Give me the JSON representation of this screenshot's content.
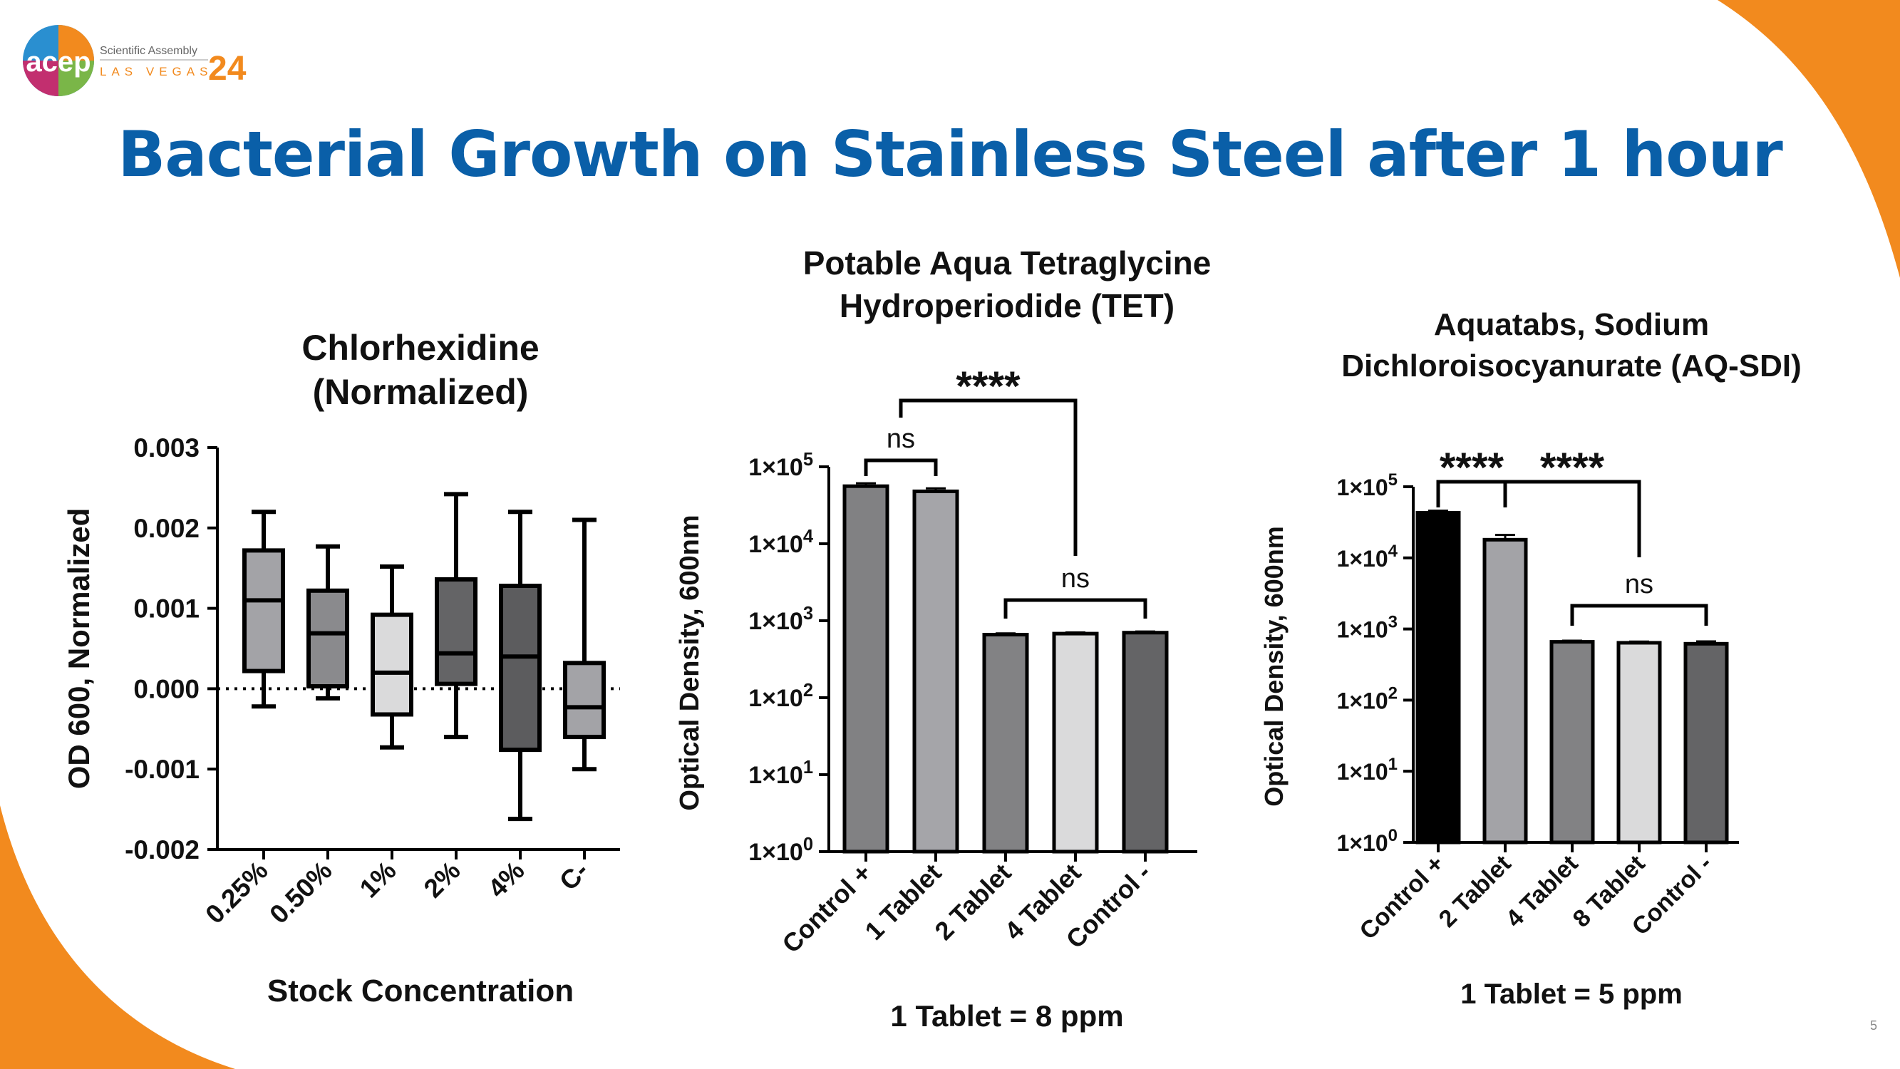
{
  "header": {
    "logo_mark": "acep",
    "logo_line1": "Scientific Assembly",
    "logo_line2": "LAS VEGAS",
    "logo_year": "24",
    "title": "Bacterial Growth on Stainless Steel after 1 hour"
  },
  "colors": {
    "title_blue": "#0a5fa8",
    "accent_orange": "#f28a1e"
  },
  "slide_number": "5",
  "chart_data": [
    {
      "type": "box",
      "title_lines": [
        "Chlorhexidine",
        "(Normalized)"
      ],
      "xlabel": "Stock Concentration",
      "ylabel": "OD 600, Normalized",
      "ylim": [
        -0.002,
        0.003
      ],
      "yticks": [
        0.003,
        0.002,
        0.001,
        0.0,
        -0.001,
        -0.002
      ],
      "ytick_labels": [
        "0.003",
        "0.002",
        "0.001",
        "0.000",
        "-0.001",
        "-0.002"
      ],
      "reference_line": 0,
      "categories": [
        "0.25%",
        "0.50%",
        "1%",
        "2%",
        "4%",
        "C-"
      ],
      "boxes": [
        {
          "min": -0.00022,
          "q1": 0.00022,
          "median": 0.0011,
          "q3": 0.00172,
          "max": 0.0022,
          "color": "#a3a3a7"
        },
        {
          "min": -0.00012,
          "q1": 3e-05,
          "median": 0.00069,
          "q3": 0.00122,
          "max": 0.00177,
          "color": "#8a8a8d"
        },
        {
          "min": -0.00073,
          "q1": -0.00032,
          "median": 0.0002,
          "q3": 0.00092,
          "max": 0.00152,
          "color": "#dadadb"
        },
        {
          "min": -0.0006,
          "q1": 6e-05,
          "median": 0.00044,
          "q3": 0.00136,
          "max": 0.00242,
          "color": "#646466"
        },
        {
          "min": -0.00162,
          "q1": -0.00076,
          "median": 0.0004,
          "q3": 0.00128,
          "max": 0.0022,
          "color": "#5c5c5e"
        },
        {
          "min": -0.001,
          "q1": -0.0006,
          "median": -0.00023,
          "q3": 0.00032,
          "max": 0.0021,
          "color": "#a3a3a7"
        }
      ]
    },
    {
      "type": "bar",
      "title_lines": [
        "Potable Aqua Tetraglycine",
        "Hydroperiodide (TET)"
      ],
      "xlabel": "1 Tablet = 8 ppm",
      "ylabel": "Optical Density, 600nm",
      "yscale": "log",
      "ylim": [
        1,
        100000
      ],
      "ytick_labels": [
        {
          "base": "1×10",
          "exp": "0"
        },
        {
          "base": "1×10",
          "exp": "1"
        },
        {
          "base": "1×10",
          "exp": "2"
        },
        {
          "base": "1×10",
          "exp": "3"
        },
        {
          "base": "1×10",
          "exp": "4"
        },
        {
          "base": "1×10",
          "exp": "5"
        }
      ],
      "categories": [
        "Control +",
        "1 Tablet",
        "2 Tablet",
        "4 Tablet",
        "Control -"
      ],
      "values": [
        56000,
        48000,
        660,
        680,
        700
      ],
      "errors": [
        5000,
        4500,
        25,
        25,
        25
      ],
      "colors": [
        "#818183",
        "#a5a5a9",
        "#828284",
        "#dadadb",
        "#646466"
      ],
      "annotations": [
        {
          "text": "ns",
          "from": 0,
          "to": 1
        },
        {
          "text": "****",
          "from": 0.5,
          "to": 3
        },
        {
          "text": "ns",
          "from": 2,
          "to": 4
        }
      ]
    },
    {
      "type": "bar",
      "title_lines": [
        "Aquatabs, Sodium",
        "Dichloroisocyanurate (AQ-SDI)"
      ],
      "xlabel": "1 Tablet = 5 ppm",
      "ylabel": "Optical Density, 600nm",
      "yscale": "log",
      "ylim": [
        1,
        100000
      ],
      "ytick_labels": [
        {
          "base": "1×10",
          "exp": "0"
        },
        {
          "base": "1×10",
          "exp": "1"
        },
        {
          "base": "1×10",
          "exp": "2"
        },
        {
          "base": "1×10",
          "exp": "3"
        },
        {
          "base": "1×10",
          "exp": "4"
        },
        {
          "base": "1×10",
          "exp": "5"
        }
      ],
      "categories": [
        "Control +",
        "2 Tablet",
        "4 Tablet",
        "8 Tablet",
        "Control -"
      ],
      "values": [
        43000,
        18000,
        660,
        640,
        620
      ],
      "errors": [
        3000,
        3000,
        25,
        25,
        50
      ],
      "colors": [
        "#000000",
        "#a3a3a7",
        "#828284",
        "#dadadb",
        "#646466"
      ],
      "annotations": [
        {
          "text": "****",
          "from": 0,
          "to": 1
        },
        {
          "text": "****",
          "from": 1,
          "to": 3
        },
        {
          "text": "ns",
          "from": 2,
          "to": 4
        }
      ]
    }
  ]
}
